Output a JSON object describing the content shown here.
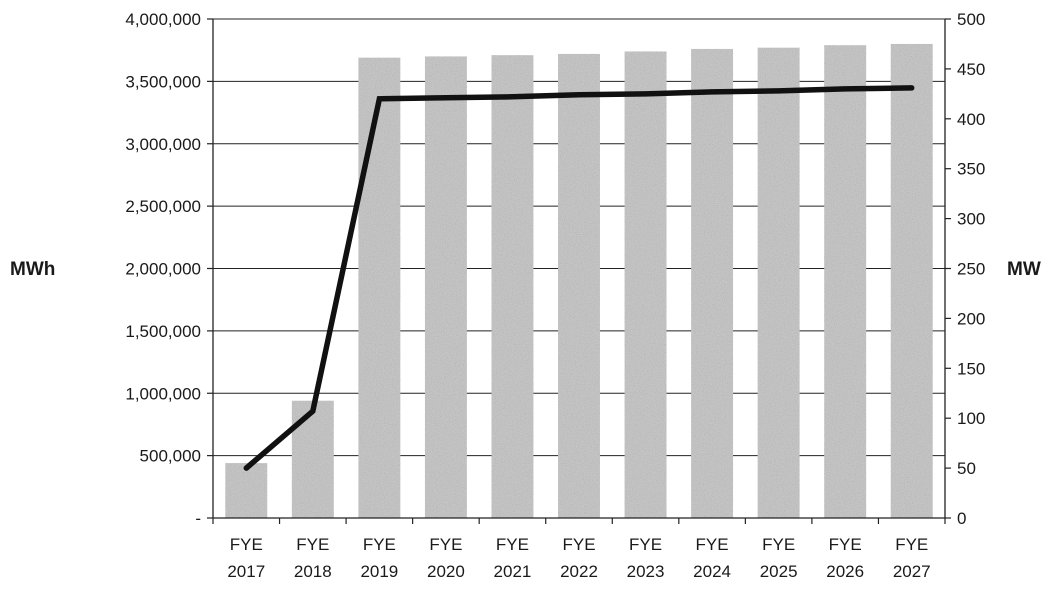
{
  "chart_data": {
    "type": "bar",
    "categories": [
      [
        "FYE",
        "2017"
      ],
      [
        "FYE",
        "2018"
      ],
      [
        "FYE",
        "2019"
      ],
      [
        "FYE",
        "2020"
      ],
      [
        "FYE",
        "2021"
      ],
      [
        "FYE",
        "2022"
      ],
      [
        "FYE",
        "2023"
      ],
      [
        "FYE",
        "2024"
      ],
      [
        "FYE",
        "2025"
      ],
      [
        "FYE",
        "2026"
      ],
      [
        "FYE",
        "2027"
      ]
    ],
    "series": [
      {
        "type": "bar",
        "axis": "left",
        "values": [
          440000,
          940000,
          3690000,
          3700000,
          3710000,
          3720000,
          3740000,
          3760000,
          3770000,
          3790000,
          3800000
        ]
      },
      {
        "type": "line",
        "axis": "right",
        "values": [
          50,
          107,
          420,
          421,
          422,
          424,
          425,
          427,
          428,
          430,
          431
        ]
      }
    ],
    "ylabel": "MWh",
    "y2label": "MW",
    "ylim": [
      0,
      4000000
    ],
    "y2lim": [
      0,
      500
    ],
    "y_ticks": [
      "-",
      "500,000",
      "1,000,000",
      "1,500,000",
      "2,000,000",
      "2,500,000",
      "3,000,000",
      "3,500,000",
      "4,000,000"
    ],
    "y2_ticks": [
      "0",
      "50",
      "100",
      "150",
      "200",
      "250",
      "300",
      "350",
      "400",
      "450",
      "500"
    ],
    "grid": true,
    "legend": "none",
    "colors": {
      "bar": "#c4c4c4",
      "bar_speckle": "#8a8a8a",
      "line": "#111111",
      "grid": "#222222",
      "axis": "#222222"
    }
  }
}
